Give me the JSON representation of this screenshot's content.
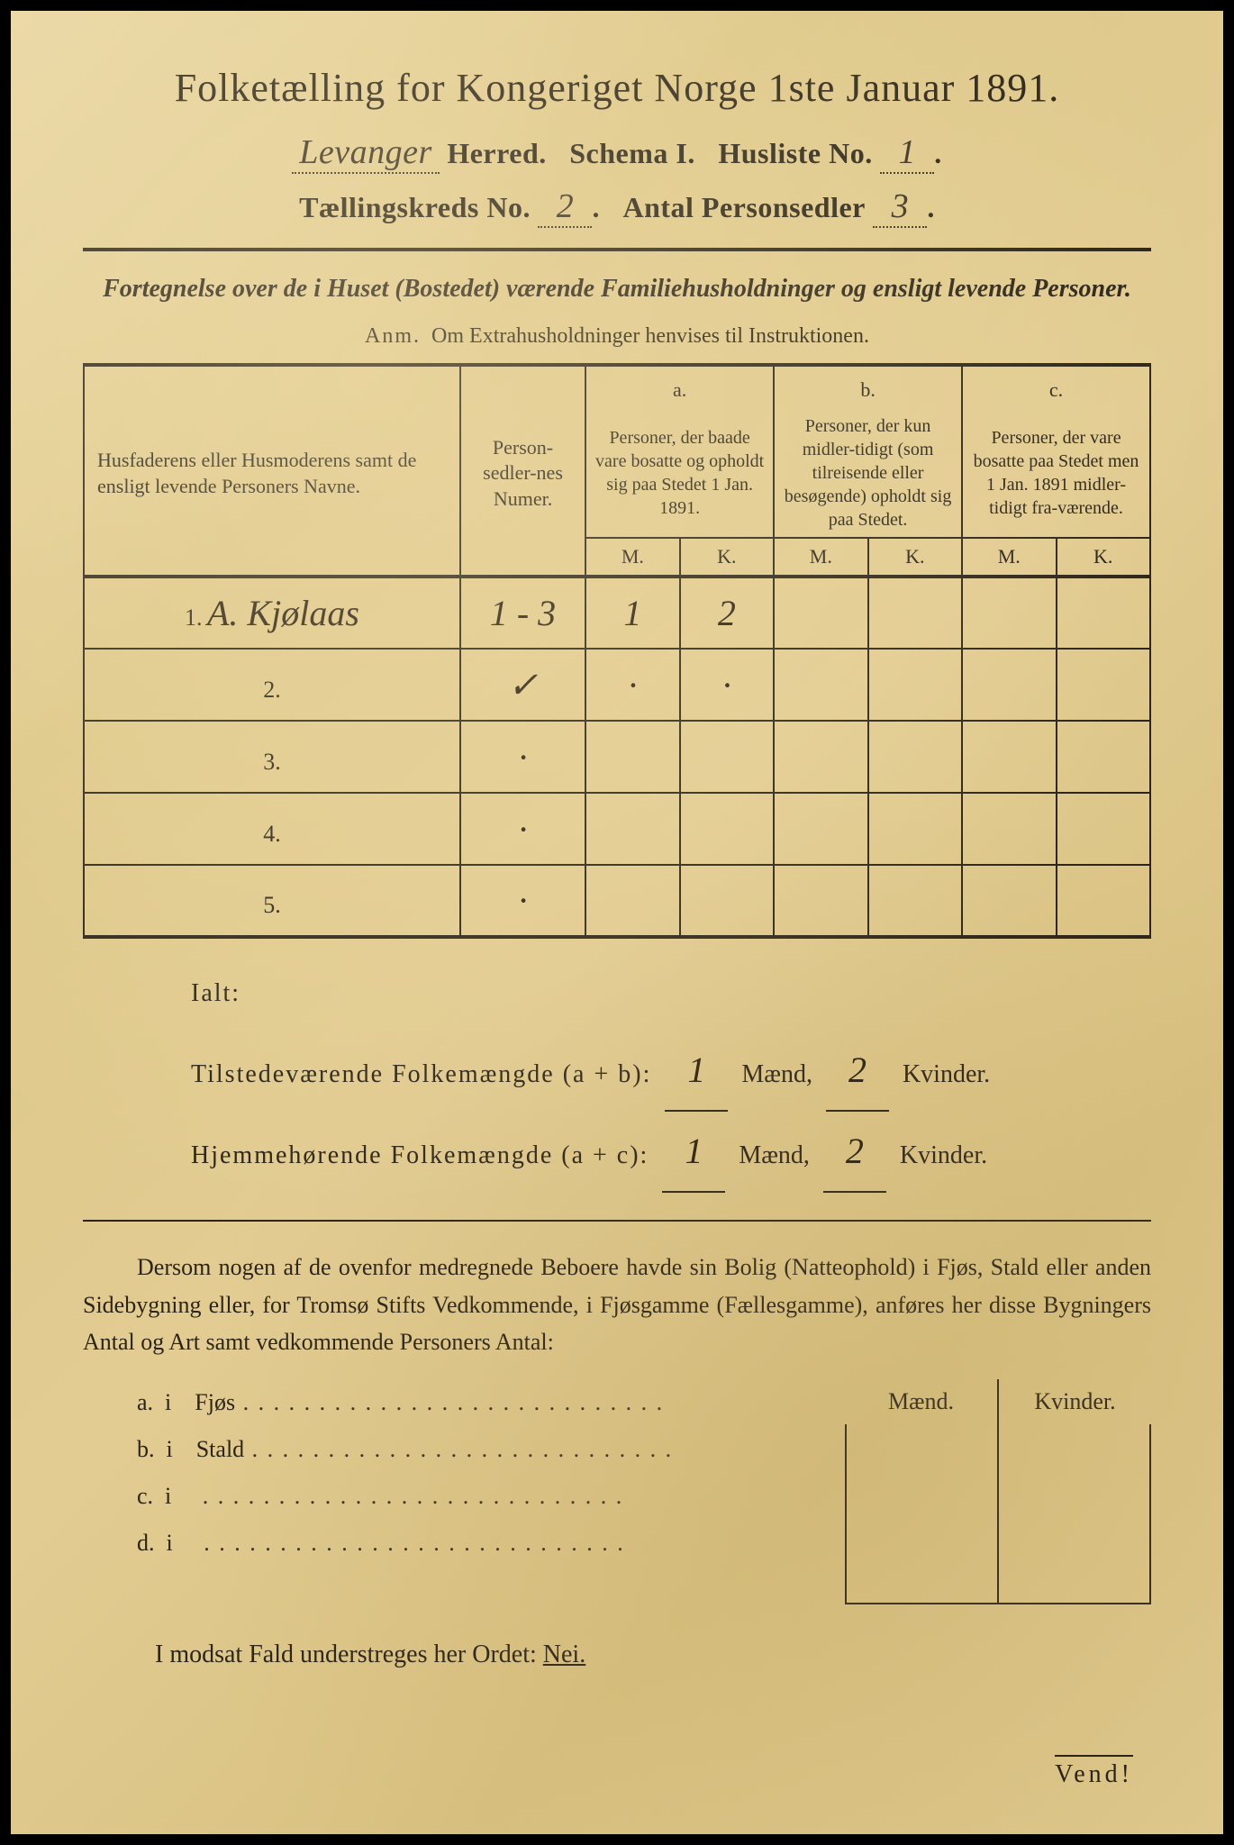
{
  "title": "Folketælling for Kongeriget Norge 1ste Januar 1891.",
  "header": {
    "herred_value": "Levanger",
    "herred_label": "Herred.",
    "schema_label": "Schema I.",
    "husliste_label": "Husliste No.",
    "husliste_value": "1",
    "kreds_label": "Tællingskreds No.",
    "kreds_value": "2",
    "antal_label": "Antal Personsedler",
    "antal_value": "3"
  },
  "subtitle": "Fortegnelse over de i Huset (Bostedet) værende Familiehusholdninger og ensligt levende Personer.",
  "note_prefix": "Anm.",
  "note_text": "Om Extrahusholdninger henvises til Instruktionen.",
  "table": {
    "col_name": "Husfaderens eller Husmoderens samt de ensligt levende Personers Navne.",
    "col_num": "Person-sedler-nes Numer.",
    "col_a_letter": "a.",
    "col_a": "Personer, der baade vare bosatte og opholdt sig paa Stedet 1 Jan. 1891.",
    "col_b_letter": "b.",
    "col_b": "Personer, der kun midler-tidigt (som tilreisende eller besøgende) opholdt sig paa Stedet.",
    "col_c_letter": "c.",
    "col_c": "Personer, der vare bosatte paa Stedet men 1 Jan. 1891 midler-tidigt fra-værende.",
    "mk_m": "M.",
    "mk_k": "K.",
    "rows": [
      {
        "n": "1.",
        "name": "A. Kjølaas",
        "num": "1 - 3",
        "a_m": "1",
        "a_k": "2",
        "b_m": "",
        "b_k": "",
        "c_m": "",
        "c_k": ""
      },
      {
        "n": "2.",
        "name": "",
        "num": "✓",
        "a_m": "·",
        "a_k": "·",
        "b_m": "",
        "b_k": "",
        "c_m": "",
        "c_k": ""
      },
      {
        "n": "3.",
        "name": "",
        "num": "·",
        "a_m": "",
        "a_k": "",
        "b_m": "",
        "b_k": "",
        "c_m": "",
        "c_k": ""
      },
      {
        "n": "4.",
        "name": "",
        "num": "·",
        "a_m": "",
        "a_k": "",
        "b_m": "",
        "b_k": "",
        "c_m": "",
        "c_k": ""
      },
      {
        "n": "5.",
        "name": "",
        "num": "·",
        "a_m": "",
        "a_k": "",
        "b_m": "",
        "b_k": "",
        "c_m": "",
        "c_k": ""
      }
    ]
  },
  "totals": {
    "ialt": "Ialt:",
    "line1_label": "Tilstedeværende Folkemængde (a + b):",
    "line1_m": "1",
    "line1_k": "2",
    "line2_label": "Hjemmehørende Folkemængde (a + c):",
    "line2_m": "1",
    "line2_k": "2",
    "maend": "Mænd,",
    "kvinder": "Kvinder."
  },
  "para": "Dersom nogen af de ovenfor medregnede Beboere havde sin Bolig (Natteophold) i Fjøs, Stald eller anden Sidebygning eller, for Tromsø Stifts Vedkommende, i Fjøsgamme (Fællesgamme), anføres her disse Bygningers Antal og Art samt vedkommende Personers Antal:",
  "side": {
    "maend": "Mænd.",
    "kvinder": "Kvinder.",
    "items": [
      {
        "l": "a.",
        "i": "i",
        "t": "Fjøs"
      },
      {
        "l": "b.",
        "i": "i",
        "t": "Stald"
      },
      {
        "l": "c.",
        "i": "i",
        "t": ""
      },
      {
        "l": "d.",
        "i": "i",
        "t": ""
      }
    ]
  },
  "footer": "I modsat Fald understreges her Ordet:",
  "footer_nei": "Nei.",
  "vend": "Vend!",
  "colors": {
    "paper": "#e0ca8e",
    "ink": "#2b2418",
    "handwriting": "#2a2010"
  },
  "fonts": {
    "body_family": "Georgia, Times New Roman, serif",
    "cursive_family": "Brush Script MT, cursive",
    "title_size_pt": 33,
    "body_size_pt": 20
  }
}
